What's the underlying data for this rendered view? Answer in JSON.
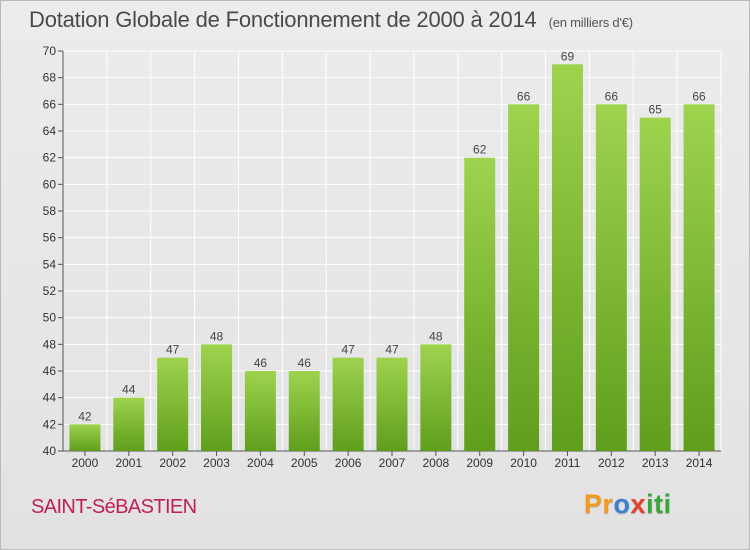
{
  "title": "Dotation Globale de Fonctionnement de 2000 à 2014",
  "unit": "(en milliers d'€)",
  "commune": "SAINT-SéBASTIEN",
  "logo": {
    "letters": [
      "P",
      "r",
      "o",
      "x",
      "i",
      "t",
      "i"
    ],
    "colors": [
      "#f39a1f",
      "#f39a1f",
      "#3a7fd0",
      "#e2412e",
      "#3aa53a",
      "#3aa53a",
      "#3aa53a"
    ]
  },
  "colors": {
    "bar_light": "#9ed34e",
    "bar_dark": "#5f9e1c",
    "title": "#4a4a4a",
    "commune": "#c0205a"
  },
  "chart_data": {
    "type": "bar",
    "title": "Dotation Globale de Fonctionnement de 2000 à 2014",
    "subtitle": "(en milliers d'€)",
    "categories": [
      "2000",
      "2001",
      "2002",
      "2003",
      "2004",
      "2005",
      "2006",
      "2007",
      "2008",
      "2009",
      "2010",
      "2011",
      "2012",
      "2013",
      "2014"
    ],
    "values": [
      42,
      44,
      47,
      48,
      46,
      46,
      47,
      47,
      48,
      62,
      66,
      69,
      66,
      65,
      66
    ],
    "ylim": [
      40,
      70
    ],
    "yticks": [
      40,
      42,
      44,
      46,
      48,
      50,
      52,
      54,
      56,
      58,
      60,
      62,
      64,
      66,
      68,
      70
    ],
    "grid": true,
    "legend": "none",
    "data_labels": true
  }
}
